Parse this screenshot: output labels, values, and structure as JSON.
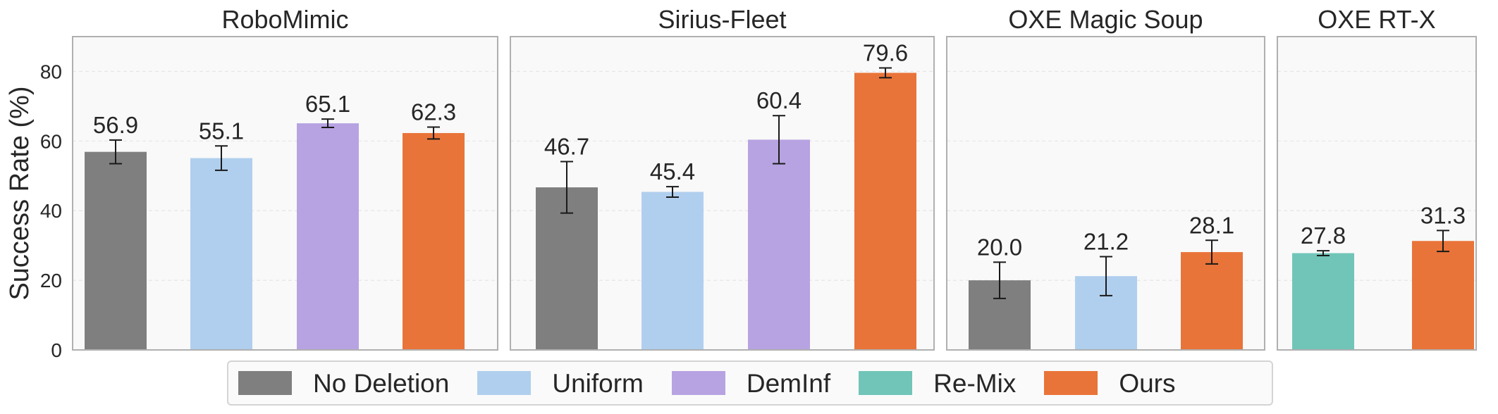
{
  "chart_data": {
    "type": "bar",
    "ylabel": "Success Rate (%)",
    "ylim": [
      0,
      90
    ],
    "yticks": [
      0,
      20,
      40,
      60,
      80
    ],
    "grid": "horizontal dashed",
    "legend_placement": "bottom-center",
    "colors": {
      "No Deletion": "#7f7f7f",
      "Uniform": "#b0cfee",
      "DemInf": "#b7a3e2",
      "Re-Mix": "#70c5b8",
      "Ours": "#e97439"
    },
    "legend": [
      "No Deletion",
      "Uniform",
      "DemInf",
      "Re-Mix",
      "Ours"
    ],
    "panels": [
      {
        "title": "RoboMimic",
        "bars": [
          {
            "series": "No Deletion",
            "value": 56.9,
            "label": "56.9",
            "err": 3.4
          },
          {
            "series": "Uniform",
            "value": 55.1,
            "label": "55.1",
            "err": 3.5
          },
          {
            "series": "DemInf",
            "value": 65.1,
            "label": "65.1",
            "err": 1.2
          },
          {
            "series": "Ours",
            "value": 62.3,
            "label": "62.3",
            "err": 1.7
          }
        ]
      },
      {
        "title": "Sirius-Fleet",
        "bars": [
          {
            "series": "No Deletion",
            "value": 46.7,
            "label": "46.7",
            "err": 7.4
          },
          {
            "series": "Uniform",
            "value": 45.4,
            "label": "45.4",
            "err": 1.5
          },
          {
            "series": "DemInf",
            "value": 60.4,
            "label": "60.4",
            "err": 6.9
          },
          {
            "series": "Ours",
            "value": 79.6,
            "label": "79.6",
            "err": 1.4
          }
        ]
      },
      {
        "title": "OXE Magic Soup",
        "bars": [
          {
            "series": "No Deletion",
            "value": 20.0,
            "label": "20.0",
            "err": 5.2
          },
          {
            "series": "Uniform",
            "value": 21.2,
            "label": "21.2",
            "err": 5.6
          },
          {
            "series": "Ours",
            "value": 28.1,
            "label": "28.1",
            "err": 3.4
          }
        ]
      },
      {
        "title": "OXE RT-X",
        "bars": [
          {
            "series": "Re-Mix",
            "value": 27.8,
            "label": "27.8",
            "err": 0.7
          },
          {
            "series": "Ours",
            "value": 31.3,
            "label": "31.3",
            "err": 3.0
          }
        ]
      }
    ]
  }
}
